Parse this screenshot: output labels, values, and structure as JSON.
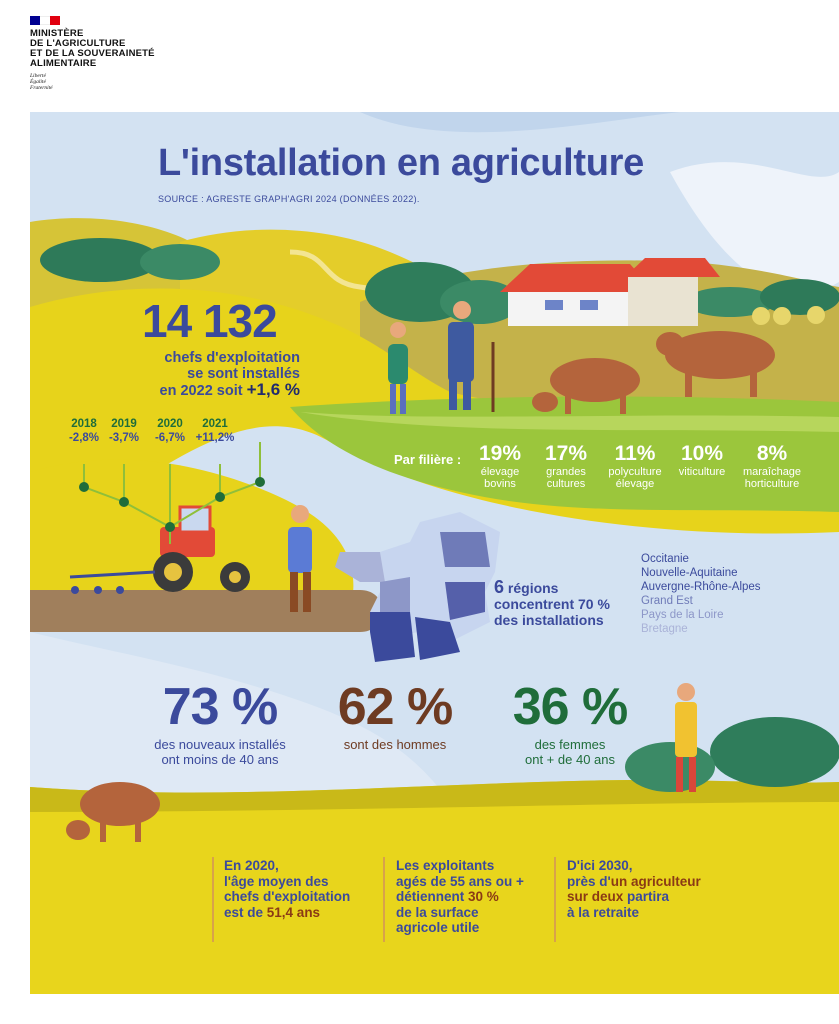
{
  "header": {
    "ministry_lines": [
      "MINISTÈRE",
      "DE L'AGRICULTURE",
      "ET DE LA SOUVERAINETÉ",
      "ALIMENTAIRE"
    ],
    "motto_lines": [
      "Liberté",
      "Égalité",
      "Fraternité"
    ],
    "flag_colors": [
      "#000091",
      "#ffffff",
      "#e1000f"
    ]
  },
  "poster": {
    "title": "L'installation en agriculture",
    "source": "SOURCE : AGRESTE GRAPH'AGRI 2024 (DONNÉES 2022).",
    "headline": {
      "number": "14 132",
      "line1": "chefs d'exploitation",
      "line2": "se sont installés",
      "line3": "en 2022 soit",
      "pct": "+1,6 %"
    },
    "trend": [
      {
        "year": "2018",
        "value": "-2,8%"
      },
      {
        "year": "2019",
        "value": "-3,7%"
      },
      {
        "year": "2020",
        "value": "-6,7%"
      },
      {
        "year": "2021",
        "value": "+11,2%"
      }
    ],
    "filiere": {
      "label": "Par filière :",
      "items": [
        {
          "pct": "19%",
          "line1": "élevage",
          "line2": "bovins"
        },
        {
          "pct": "17%",
          "line1": "grandes",
          "line2": "cultures"
        },
        {
          "pct": "11%",
          "line1": "polyculture",
          "line2": "élevage"
        },
        {
          "pct": "10%",
          "line1": "viticulture",
          "line2": ""
        },
        {
          "pct": "8%",
          "line1": "maraîchage",
          "line2": "horticulture"
        }
      ]
    },
    "regions": {
      "count": "6",
      "count_word": "régions",
      "line2": "concentrent",
      "pct": "70 %",
      "line3": "des installations",
      "list": [
        {
          "name": "Occitanie",
          "color": "#3b4a9c"
        },
        {
          "name": "Nouvelle-Aquitaine",
          "color": "#3b4a9c"
        },
        {
          "name": "Auvergne-Rhône-Alpes",
          "color": "#3b4a9c"
        },
        {
          "name": "Grand Est",
          "color": "#6f7bb8"
        },
        {
          "name": "Pays de la Loire",
          "color": "#8d97c8"
        },
        {
          "name": "Bretagne",
          "color": "#aab3d8"
        }
      ]
    },
    "stats": [
      {
        "big": "73 %",
        "line1": "des nouveaux installés",
        "line2": "ont moins de 40 ans",
        "color": "#3b4a9c"
      },
      {
        "big": "62 %",
        "line1": "sont des hommes",
        "line2": "",
        "color": "#6e3b22"
      },
      {
        "big": "36 %",
        "line1": "des femmes",
        "line2": "ont + de 40 ans",
        "color": "#1f6d3a"
      }
    ],
    "notes": [
      {
        "lines": [
          "En 2020,",
          "l'âge moyen des",
          "chefs d'exploitation"
        ],
        "last_pre": "est de ",
        "last_hl": "51,4 ans",
        "last_post": ""
      },
      {
        "lines": [
          "Les exploitants",
          "agés de 55 ans ou +"
        ],
        "last_pre": "détiennent ",
        "last_hl": "30 %",
        "last_post": "",
        "tail": [
          "de la surface",
          "agricole utile"
        ]
      },
      {
        "lines": [
          "D'ici 2030,"
        ],
        "mixed": [
          {
            "pre": "près d'",
            "hl": "un agriculteur"
          },
          {
            "pre": "",
            "hl": "sur deux",
            "post": " partira"
          }
        ],
        "tail": [
          "à la retraite"
        ]
      }
    ],
    "colors": {
      "primary": "#3b4a9c",
      "brown": "#6e3b22",
      "green": "#1f6d3a",
      "yellow_field": "#e7d31b",
      "green_field": "#9bc63c"
    }
  }
}
